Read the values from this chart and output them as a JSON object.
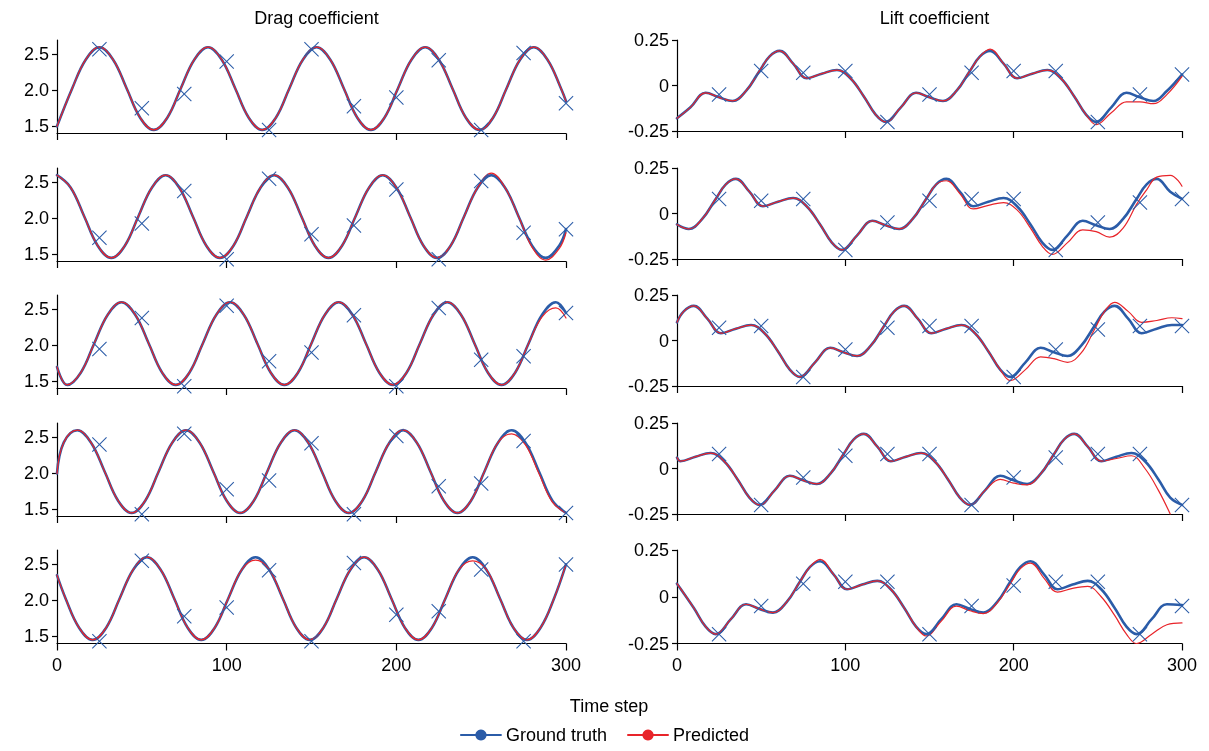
{
  "chart_data": [
    {
      "type": "line",
      "title": "Drag coefficient",
      "marker": "none",
      "tick_labels": "y",
      "xlim": [
        0,
        300
      ],
      "xticks": [
        0,
        100,
        200,
        300
      ],
      "ylim": [
        1.4,
        2.7
      ],
      "yticks": [
        {
          "value": 1.5,
          "label": "1.5"
        },
        {
          "value": 2,
          "label": "2.0"
        },
        {
          "value": 2.5,
          "label": "2.5"
        }
      ],
      "x": [
        0,
        9,
        17,
        25,
        33,
        41,
        49,
        57,
        65,
        73,
        81,
        89,
        97,
        105,
        113,
        121,
        129,
        137,
        145,
        153,
        161,
        169,
        177,
        185,
        193,
        201,
        209,
        217,
        225,
        233,
        241,
        249,
        257,
        265,
        273,
        281,
        289,
        297,
        300
      ],
      "series": [
        {
          "color": "#2b5ca8",
          "values": [
            1.5,
            2.03,
            2.43,
            2.6,
            2.43,
            2.03,
            1.62,
            1.45,
            1.62,
            2.03,
            2.43,
            2.6,
            2.43,
            2.03,
            1.62,
            1.45,
            1.62,
            2.03,
            2.43,
            2.6,
            2.43,
            2.03,
            1.62,
            1.45,
            1.62,
            2.03,
            2.43,
            2.6,
            2.43,
            2.03,
            1.62,
            1.45,
            1.62,
            2.03,
            2.43,
            2.6,
            2.43,
            2.03,
            1.85
          ]
        },
        {
          "color": "#e8242a",
          "values": [
            1.5,
            2.03,
            2.43,
            2.6,
            2.43,
            2.03,
            1.62,
            1.45,
            1.62,
            2.03,
            2.43,
            2.6,
            2.43,
            2.03,
            1.62,
            1.45,
            1.62,
            2.03,
            2.43,
            2.6,
            2.43,
            2.03,
            1.62,
            1.45,
            1.62,
            2.03,
            2.43,
            2.6,
            2.43,
            2.03,
            1.62,
            1.45,
            1.62,
            2.03,
            2.43,
            2.6,
            2.43,
            2.03,
            1.85
          ]
        },
        {
          "type": "scatter",
          "color": "#2b5ca8",
          "marker": "cross",
          "x": [
            25,
            50,
            75,
            100,
            125,
            150,
            175,
            200,
            225,
            250,
            275,
            300
          ],
          "values": [
            2.57,
            1.75,
            1.95,
            2.4,
            1.45,
            2.57,
            1.78,
            1.9,
            2.42,
            1.45,
            2.52,
            1.82
          ]
        }
      ]
    },
    {
      "type": "line",
      "title": "Lift coefficient",
      "marker": "none",
      "tick_labels": "y",
      "xlim": [
        0,
        300
      ],
      "xticks": [
        0,
        100,
        200,
        300
      ],
      "ylim": [
        -0.25,
        0.25
      ],
      "yticks": [
        -0.25,
        0,
        0.25
      ],
      "x": [
        0,
        8,
        17,
        25,
        33,
        41,
        49,
        55,
        61,
        69,
        77,
        86,
        95,
        103,
        111,
        118,
        124,
        133,
        142,
        150,
        158,
        166,
        174,
        180,
        186,
        194,
        202,
        211,
        220,
        228,
        236,
        243,
        249,
        258,
        267,
        275,
        283,
        291,
        300
      ],
      "series": [
        {
          "color": "#2b5ca8",
          "values": [
            -0.18,
            -0.12,
            -0.04,
            -0.065,
            -0.085,
            -0.03,
            0.08,
            0.16,
            0.19,
            0.12,
            0.04,
            0.065,
            0.085,
            0.04,
            -0.06,
            -0.16,
            -0.2,
            -0.12,
            -0.04,
            -0.065,
            -0.085,
            -0.03,
            0.08,
            0.16,
            0.19,
            0.12,
            0.04,
            0.065,
            0.085,
            0.04,
            -0.06,
            -0.16,
            -0.2,
            -0.12,
            -0.04,
            -0.065,
            -0.085,
            -0.03,
            0.06
          ]
        },
        {
          "color": "#e8242a",
          "values": [
            -0.18,
            -0.12,
            -0.04,
            -0.065,
            -0.085,
            -0.03,
            0.08,
            0.16,
            0.19,
            0.12,
            0.04,
            0.065,
            0.085,
            0.04,
            -0.06,
            -0.16,
            -0.2,
            -0.12,
            -0.04,
            -0.065,
            -0.085,
            -0.03,
            0.08,
            0.16,
            0.2,
            0.12,
            0.04,
            0.065,
            0.085,
            0.04,
            -0.06,
            -0.16,
            -0.215,
            -0.15,
            -0.09,
            -0.09,
            -0.1,
            -0.05,
            0.05
          ]
        },
        {
          "type": "scatter",
          "color": "#2b5ca8",
          "marker": "cross",
          "x": [
            25,
            50,
            75,
            100,
            125,
            150,
            175,
            200,
            225,
            250,
            275,
            300
          ],
          "values": [
            -0.05,
            0.08,
            0.07,
            0.08,
            -0.2,
            -0.05,
            0.07,
            0.08,
            0.08,
            -0.2,
            -0.05,
            0.06
          ]
        }
      ]
    },
    {
      "type": "line",
      "marker": "none",
      "tick_labels": "y",
      "xlim": [
        0,
        300
      ],
      "xticks": [
        0,
        100,
        200,
        300
      ],
      "ylim": [
        1.4,
        2.7
      ],
      "yticks": [
        {
          "value": 1.5,
          "label": "1.5"
        },
        {
          "value": 2,
          "label": "2.0"
        },
        {
          "value": 2.5,
          "label": "2.5"
        }
      ],
      "x": [
        0,
        8,
        16,
        24,
        32,
        40,
        48,
        56,
        64,
        72,
        80,
        88,
        96,
        104,
        112,
        120,
        128,
        136,
        144,
        152,
        160,
        168,
        176,
        184,
        192,
        200,
        208,
        216,
        224,
        232,
        240,
        248,
        256,
        264,
        272,
        280,
        288,
        296,
        300
      ],
      "series": [
        {
          "color": "#2b5ca8",
          "values": [
            2.6,
            2.43,
            2.03,
            1.62,
            1.45,
            1.62,
            2.03,
            2.43,
            2.6,
            2.43,
            2.03,
            1.62,
            1.45,
            1.62,
            2.03,
            2.43,
            2.6,
            2.43,
            2.03,
            1.62,
            1.45,
            1.62,
            2.03,
            2.43,
            2.6,
            2.43,
            2.03,
            1.62,
            1.45,
            1.62,
            2.03,
            2.43,
            2.6,
            2.43,
            2.03,
            1.62,
            1.45,
            1.62,
            1.85
          ]
        },
        {
          "color": "#e8242a",
          "values": [
            2.6,
            2.43,
            2.03,
            1.62,
            1.45,
            1.62,
            2.03,
            2.43,
            2.6,
            2.43,
            2.03,
            1.62,
            1.45,
            1.62,
            2.03,
            2.43,
            2.6,
            2.43,
            2.03,
            1.62,
            1.45,
            1.62,
            2.03,
            2.43,
            2.6,
            2.43,
            2.03,
            1.62,
            1.45,
            1.62,
            2.03,
            2.43,
            2.63,
            2.43,
            2.03,
            1.6,
            1.42,
            1.58,
            1.8
          ]
        },
        {
          "type": "scatter",
          "color": "#2b5ca8",
          "marker": "cross",
          "x": [
            25,
            50,
            75,
            100,
            125,
            150,
            175,
            200,
            225,
            250,
            275,
            300
          ],
          "values": [
            1.73,
            1.93,
            2.38,
            1.43,
            2.55,
            1.78,
            1.9,
            2.4,
            1.43,
            2.52,
            1.8,
            1.85
          ]
        }
      ]
    },
    {
      "type": "line",
      "marker": "none",
      "tick_labels": "y",
      "xlim": [
        0,
        300
      ],
      "xticks": [
        0,
        100,
        200,
        300
      ],
      "ylim": [
        -0.25,
        0.25
      ],
      "yticks": [
        -0.25,
        0,
        0.25
      ],
      "x": [
        0,
        7,
        15,
        23,
        29,
        35,
        43,
        51,
        60,
        69,
        77,
        85,
        92,
        98,
        107,
        116,
        124,
        132,
        140,
        148,
        154,
        160,
        168,
        176,
        185,
        194,
        202,
        210,
        217,
        223,
        232,
        241,
        249,
        257,
        265,
        273,
        279,
        285,
        293,
        300
      ],
      "series": [
        {
          "color": "#2b5ca8",
          "values": [
            -0.06,
            -0.085,
            -0.03,
            0.08,
            0.16,
            0.19,
            0.12,
            0.04,
            0.065,
            0.085,
            0.04,
            -0.06,
            -0.16,
            -0.2,
            -0.12,
            -0.04,
            -0.065,
            -0.085,
            -0.03,
            0.08,
            0.16,
            0.19,
            0.12,
            0.04,
            0.065,
            0.085,
            0.04,
            -0.06,
            -0.16,
            -0.2,
            -0.12,
            -0.04,
            -0.065,
            -0.085,
            -0.03,
            0.08,
            0.16,
            0.19,
            0.12,
            0.08
          ]
        },
        {
          "color": "#e8242a",
          "values": [
            -0.06,
            -0.085,
            -0.03,
            0.08,
            0.16,
            0.19,
            0.12,
            0.04,
            0.065,
            0.085,
            0.04,
            -0.06,
            -0.16,
            -0.2,
            -0.12,
            -0.04,
            -0.065,
            -0.085,
            -0.03,
            0.08,
            0.16,
            0.18,
            0.11,
            0.025,
            0.045,
            0.06,
            0.02,
            -0.08,
            -0.18,
            -0.225,
            -0.16,
            -0.09,
            -0.1,
            -0.13,
            -0.08,
            0.05,
            0.13,
            0.2,
            0.21,
            0.15
          ]
        },
        {
          "type": "scatter",
          "color": "#2b5ca8",
          "marker": "cross",
          "x": [
            25,
            50,
            75,
            100,
            125,
            150,
            175,
            200,
            225,
            250,
            275,
            300
          ],
          "values": [
            0.08,
            0.07,
            0.08,
            -0.2,
            -0.05,
            0.07,
            0.08,
            0.08,
            -0.2,
            -0.05,
            0.06,
            0.08
          ]
        }
      ]
    },
    {
      "type": "line",
      "marker": "none",
      "tick_labels": "y",
      "xlim": [
        0,
        300
      ],
      "xticks": [
        0,
        100,
        200,
        300
      ],
      "ylim": [
        1.4,
        2.7
      ],
      "yticks": [
        {
          "value": 1.5,
          "label": "1.5"
        },
        {
          "value": 2,
          "label": "2.0"
        },
        {
          "value": 2.5,
          "label": "2.5"
        }
      ],
      "x": [
        0,
        6,
        14,
        22,
        30,
        38,
        46,
        54,
        62,
        70,
        78,
        86,
        94,
        102,
        110,
        118,
        126,
        134,
        142,
        150,
        158,
        166,
        174,
        182,
        190,
        198,
        206,
        214,
        222,
        230,
        238,
        246,
        254,
        262,
        270,
        278,
        286,
        294,
        300
      ],
      "series": [
        {
          "color": "#2b5ca8",
          "values": [
            1.7,
            1.45,
            1.62,
            2.03,
            2.43,
            2.6,
            2.43,
            2.03,
            1.62,
            1.45,
            1.62,
            2.03,
            2.43,
            2.6,
            2.43,
            2.03,
            1.62,
            1.45,
            1.62,
            2.03,
            2.43,
            2.6,
            2.43,
            2.03,
            1.62,
            1.45,
            1.62,
            2.03,
            2.43,
            2.6,
            2.43,
            2.03,
            1.62,
            1.45,
            1.62,
            2.03,
            2.43,
            2.6,
            2.45
          ]
        },
        {
          "color": "#e8242a",
          "values": [
            1.7,
            1.45,
            1.62,
            2.03,
            2.43,
            2.6,
            2.43,
            2.03,
            1.62,
            1.45,
            1.62,
            2.03,
            2.43,
            2.6,
            2.43,
            2.03,
            1.62,
            1.45,
            1.62,
            2.03,
            2.43,
            2.6,
            2.43,
            2.03,
            1.62,
            1.45,
            1.62,
            2.03,
            2.43,
            2.6,
            2.43,
            2.03,
            1.62,
            1.45,
            1.62,
            2.03,
            2.4,
            2.52,
            2.38
          ]
        },
        {
          "type": "scatter",
          "color": "#2b5ca8",
          "marker": "cross",
          "x": [
            25,
            50,
            75,
            100,
            125,
            150,
            175,
            200,
            225,
            250,
            275,
            300
          ],
          "values": [
            1.95,
            2.38,
            1.43,
            2.55,
            1.78,
            1.9,
            2.42,
            1.43,
            2.52,
            1.8,
            1.85,
            2.45
          ]
        }
      ]
    },
    {
      "type": "line",
      "marker": "none",
      "tick_labels": "y",
      "xlim": [
        0,
        300
      ],
      "xticks": [
        0,
        100,
        200,
        300
      ],
      "ylim": [
        -0.25,
        0.25
      ],
      "yticks": [
        -0.25,
        0,
        0.25
      ],
      "x": [
        0,
        4,
        10,
        18,
        26,
        35,
        44,
        52,
        60,
        67,
        73,
        82,
        91,
        99,
        107,
        115,
        123,
        129,
        135,
        143,
        151,
        160,
        169,
        177,
        185,
        192,
        198,
        207,
        216,
        224,
        232,
        240,
        248,
        254,
        260,
        268,
        276,
        285,
        294,
        300
      ],
      "series": [
        {
          "color": "#2b5ca8",
          "values": [
            0.1,
            0.16,
            0.19,
            0.12,
            0.04,
            0.065,
            0.085,
            0.04,
            -0.06,
            -0.16,
            -0.2,
            -0.12,
            -0.04,
            -0.065,
            -0.085,
            -0.03,
            0.08,
            0.16,
            0.19,
            0.12,
            0.04,
            0.065,
            0.085,
            0.04,
            -0.06,
            -0.16,
            -0.2,
            -0.12,
            -0.04,
            -0.065,
            -0.085,
            -0.03,
            0.08,
            0.16,
            0.19,
            0.12,
            0.04,
            0.065,
            0.085,
            0.085
          ]
        },
        {
          "color": "#e8242a",
          "values": [
            0.1,
            0.16,
            0.19,
            0.12,
            0.04,
            0.065,
            0.085,
            0.04,
            -0.06,
            -0.16,
            -0.2,
            -0.12,
            -0.04,
            -0.065,
            -0.085,
            -0.03,
            0.08,
            0.16,
            0.19,
            0.12,
            0.04,
            0.065,
            0.085,
            0.04,
            -0.06,
            -0.16,
            -0.22,
            -0.16,
            -0.09,
            -0.1,
            -0.12,
            -0.07,
            0.06,
            0.16,
            0.21,
            0.16,
            0.1,
            0.11,
            0.125,
            0.12
          ]
        },
        {
          "type": "scatter",
          "color": "#2b5ca8",
          "marker": "cross",
          "x": [
            25,
            50,
            75,
            100,
            125,
            150,
            175,
            200,
            225,
            250,
            275,
            300
          ],
          "values": [
            0.07,
            0.08,
            -0.2,
            -0.05,
            0.07,
            0.08,
            0.08,
            -0.2,
            -0.05,
            0.06,
            0.08,
            0.08
          ]
        }
      ]
    },
    {
      "type": "line",
      "marker": "none",
      "tick_labels": "y",
      "xlim": [
        0,
        300
      ],
      "xticks": [
        0,
        100,
        200,
        300
      ],
      "ylim": [
        1.4,
        2.7
      ],
      "yticks": [
        {
          "value": 1.5,
          "label": "1.5"
        },
        {
          "value": 2,
          "label": "2.0"
        },
        {
          "value": 2.5,
          "label": "2.5"
        }
      ],
      "x": [
        0,
        4,
        12,
        20,
        28,
        36,
        44,
        52,
        60,
        68,
        76,
        84,
        92,
        100,
        108,
        116,
        124,
        132,
        140,
        148,
        156,
        164,
        172,
        180,
        188,
        196,
        204,
        212,
        220,
        228,
        236,
        244,
        252,
        260,
        268,
        276,
        284,
        292,
        300
      ],
      "series": [
        {
          "color": "#2b5ca8",
          "values": [
            2.0,
            2.43,
            2.6,
            2.43,
            2.03,
            1.62,
            1.45,
            1.62,
            2.03,
            2.43,
            2.6,
            2.43,
            2.03,
            1.62,
            1.45,
            1.62,
            2.03,
            2.43,
            2.6,
            2.43,
            2.03,
            1.62,
            1.45,
            1.62,
            2.03,
            2.43,
            2.6,
            2.43,
            2.03,
            1.62,
            1.45,
            1.62,
            2.03,
            2.43,
            2.6,
            2.43,
            2.03,
            1.62,
            1.45
          ]
        },
        {
          "color": "#e8242a",
          "values": [
            2.0,
            2.43,
            2.6,
            2.43,
            2.03,
            1.62,
            1.45,
            1.62,
            2.03,
            2.43,
            2.6,
            2.43,
            2.03,
            1.62,
            1.45,
            1.62,
            2.03,
            2.43,
            2.6,
            2.43,
            2.03,
            1.62,
            1.45,
            1.62,
            2.03,
            2.43,
            2.6,
            2.43,
            2.03,
            1.62,
            1.45,
            1.62,
            2.03,
            2.43,
            2.55,
            2.4,
            2.0,
            1.6,
            1.45
          ]
        },
        {
          "type": "scatter",
          "color": "#2b5ca8",
          "marker": "cross",
          "x": [
            25,
            50,
            75,
            100,
            125,
            150,
            175,
            200,
            225,
            250,
            275,
            300
          ],
          "values": [
            2.4,
            1.43,
            2.55,
            1.78,
            1.9,
            2.42,
            1.43,
            2.52,
            1.82,
            1.86,
            2.45,
            1.45
          ]
        }
      ]
    },
    {
      "type": "line",
      "marker": "none",
      "tick_labels": "y",
      "xlim": [
        0,
        300
      ],
      "xticks": [
        0,
        100,
        200,
        300
      ],
      "ylim": [
        -0.25,
        0.25
      ],
      "yticks": [
        -0.25,
        0,
        0.25
      ],
      "x": [
        0,
        2,
        11,
        20,
        28,
        36,
        43,
        49,
        58,
        67,
        75,
        83,
        91,
        99,
        105,
        111,
        119,
        127,
        136,
        145,
        153,
        161,
        168,
        174,
        183,
        192,
        200,
        208,
        216,
        224,
        230,
        236,
        244,
        252,
        261,
        270,
        278,
        286,
        293,
        300
      ],
      "series": [
        {
          "color": "#2b5ca8",
          "values": [
            0.06,
            0.04,
            0.065,
            0.085,
            0.04,
            -0.06,
            -0.16,
            -0.2,
            -0.12,
            -0.04,
            -0.065,
            -0.085,
            -0.03,
            0.08,
            0.16,
            0.19,
            0.12,
            0.04,
            0.065,
            0.085,
            0.04,
            -0.06,
            -0.16,
            -0.2,
            -0.12,
            -0.04,
            -0.065,
            -0.085,
            -0.03,
            0.08,
            0.16,
            0.19,
            0.12,
            0.04,
            0.065,
            0.085,
            0.04,
            -0.06,
            -0.16,
            -0.2
          ]
        },
        {
          "color": "#e8242a",
          "values": [
            0.06,
            0.04,
            0.065,
            0.085,
            0.04,
            -0.06,
            -0.16,
            -0.2,
            -0.12,
            -0.04,
            -0.065,
            -0.085,
            -0.03,
            0.08,
            0.16,
            0.19,
            0.12,
            0.04,
            0.065,
            0.085,
            0.04,
            -0.06,
            -0.16,
            -0.2,
            -0.12,
            -0.06,
            -0.08,
            -0.09,
            -0.03,
            0.08,
            0.16,
            0.19,
            0.12,
            0.04,
            0.055,
            0.07,
            0.0,
            -0.12,
            -0.25,
            null
          ]
        },
        {
          "type": "scatter",
          "color": "#2b5ca8",
          "marker": "cross",
          "x": [
            25,
            50,
            75,
            100,
            125,
            150,
            175,
            200,
            225,
            250,
            275,
            300
          ],
          "values": [
            0.08,
            -0.2,
            -0.05,
            0.07,
            0.08,
            0.08,
            -0.2,
            -0.05,
            0.06,
            0.08,
            0.08,
            -0.2
          ]
        }
      ]
    },
    {
      "type": "line",
      "xlabel": "Time step",
      "legend": "bottom",
      "marker": "none",
      "xlim": [
        0,
        300
      ],
      "xticks": [
        0,
        100,
        200,
        300
      ],
      "ylim": [
        1.4,
        2.7
      ],
      "yticks": [
        {
          "value": 1.5,
          "label": "1.5"
        },
        {
          "value": 2,
          "label": "2.0"
        },
        {
          "value": 2.5,
          "label": "2.5"
        }
      ],
      "x": [
        0,
        5,
        13,
        21,
        29,
        37,
        45,
        53,
        61,
        69,
        77,
        85,
        93,
        101,
        109,
        117,
        125,
        133,
        141,
        149,
        157,
        165,
        173,
        181,
        189,
        197,
        205,
        213,
        221,
        229,
        237,
        245,
        253,
        261,
        269,
        277,
        285,
        293,
        300
      ],
      "series": [
        {
          "name": "Ground truth",
          "color": "#2b5ca8",
          "values": [
            2.35,
            2.03,
            1.62,
            1.45,
            1.62,
            2.03,
            2.43,
            2.6,
            2.43,
            2.03,
            1.62,
            1.45,
            1.62,
            2.03,
            2.43,
            2.6,
            2.43,
            2.03,
            1.62,
            1.45,
            1.62,
            2.03,
            2.43,
            2.6,
            2.43,
            2.03,
            1.62,
            1.45,
            1.62,
            2.03,
            2.43,
            2.6,
            2.43,
            2.03,
            1.62,
            1.45,
            1.62,
            2.03,
            2.5
          ]
        },
        {
          "name": "Predicted",
          "color": "#e8242a",
          "values": [
            2.35,
            2.03,
            1.62,
            1.45,
            1.62,
            2.03,
            2.43,
            2.6,
            2.43,
            2.03,
            1.62,
            1.45,
            1.62,
            2.03,
            2.43,
            2.56,
            2.43,
            2.03,
            1.62,
            1.45,
            1.62,
            2.03,
            2.43,
            2.6,
            2.43,
            2.03,
            1.62,
            1.45,
            1.62,
            2.03,
            2.43,
            2.55,
            2.43,
            2.03,
            1.62,
            1.45,
            1.62,
            2.03,
            2.5
          ]
        },
        {
          "type": "scatter",
          "color": "#2b5ca8",
          "marker": "cross",
          "x": [
            25,
            50,
            75,
            100,
            125,
            150,
            175,
            200,
            225,
            250,
            275,
            300
          ],
          "values": [
            1.43,
            2.55,
            1.78,
            1.9,
            2.42,
            1.43,
            2.52,
            1.8,
            1.85,
            2.43,
            1.43,
            2.5
          ]
        }
      ]
    },
    {
      "type": "line",
      "marker": "none",
      "xlim": [
        0,
        300
      ],
      "xticks": [
        0,
        100,
        200,
        300
      ],
      "ylim": [
        -0.25,
        0.25
      ],
      "yticks": [
        -0.25,
        0,
        0.25
      ],
      "x": [
        0,
        10,
        17,
        23,
        32,
        41,
        49,
        57,
        65,
        73,
        79,
        85,
        93,
        101,
        110,
        119,
        127,
        135,
        142,
        148,
        157,
        166,
        174,
        182,
        190,
        198,
        204,
        210,
        218,
        226,
        235,
        244,
        252,
        260,
        267,
        273,
        282,
        291,
        300
      ],
      "series": [
        {
          "color": "#2b5ca8",
          "values": [
            0.07,
            -0.06,
            -0.16,
            -0.2,
            -0.12,
            -0.04,
            -0.065,
            -0.085,
            -0.03,
            0.08,
            0.16,
            0.19,
            0.12,
            0.04,
            0.065,
            0.085,
            0.04,
            -0.06,
            -0.16,
            -0.2,
            -0.12,
            -0.04,
            -0.065,
            -0.085,
            -0.03,
            0.08,
            0.16,
            0.19,
            0.12,
            0.04,
            0.065,
            0.085,
            0.04,
            -0.06,
            -0.16,
            -0.2,
            -0.12,
            -0.04,
            -0.045
          ]
        },
        {
          "color": "#e8242a",
          "values": [
            0.07,
            -0.06,
            -0.16,
            -0.2,
            -0.12,
            -0.04,
            -0.065,
            -0.085,
            -0.03,
            0.08,
            0.16,
            0.2,
            0.12,
            0.04,
            0.065,
            0.085,
            0.04,
            -0.06,
            -0.16,
            -0.21,
            -0.13,
            -0.05,
            -0.075,
            -0.09,
            -0.035,
            0.07,
            0.15,
            0.18,
            0.1,
            0.025,
            0.045,
            0.055,
            0.0,
            -0.1,
            -0.2,
            -0.25,
            -0.2,
            -0.15,
            -0.14
          ]
        },
        {
          "type": "scatter",
          "color": "#2b5ca8",
          "marker": "cross",
          "x": [
            25,
            50,
            75,
            100,
            125,
            150,
            175,
            200,
            225,
            250,
            275,
            300
          ],
          "values": [
            -0.2,
            -0.05,
            0.07,
            0.08,
            0.08,
            -0.2,
            -0.05,
            0.06,
            0.08,
            0.08,
            -0.2,
            -0.05
          ]
        }
      ]
    }
  ]
}
